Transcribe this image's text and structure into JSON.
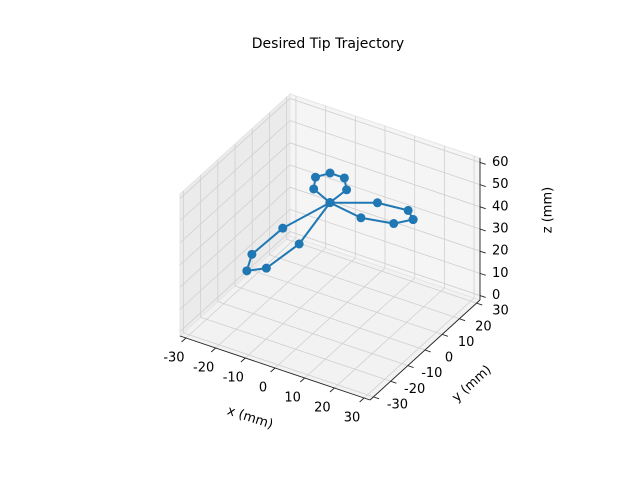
{
  "chart_data": {
    "type": "line3d",
    "title": "Desired Tip Trajectory",
    "xlabel": "x (mm)",
    "ylabel": "y (mm)",
    "zlabel": "z (mm)",
    "series": [
      {
        "color": "#1f77b4",
        "x": [
          28,
          23.9,
          13.2,
          0,
          -10.7,
          -15.6,
          -14,
          -8.3,
          -2.4,
          0,
          -2.4,
          -8.3,
          -14,
          -15.6,
          -10.7,
          0,
          13.2,
          23.9,
          28
        ],
        "y": [
          0,
          4.2,
          4.8,
          0,
          -9,
          -18.5,
          -24.2,
          -22.7,
          -13.8,
          0,
          13.8,
          22.7,
          24.2,
          18.5,
          9,
          0,
          -4.8,
          -4.2,
          0
        ],
        "z": [
          55,
          54.3,
          52.5,
          50,
          40,
          32.7,
          30,
          32.7,
          40,
          50,
          45,
          41.4,
          40,
          41.4,
          45,
          50,
          52.5,
          54.3,
          55
        ]
      }
    ],
    "xlim": [
      -32,
      32
    ],
    "xticks": [
      -30,
      -20,
      -10,
      0,
      10,
      20,
      30
    ],
    "ylim": [
      -32,
      32
    ],
    "yticks": [
      -30,
      -20,
      -10,
      0,
      10,
      20,
      30
    ],
    "zlim": [
      -2,
      62
    ],
    "zticks": [
      0,
      10,
      20,
      30,
      40,
      50,
      60
    ],
    "grid": true
  }
}
